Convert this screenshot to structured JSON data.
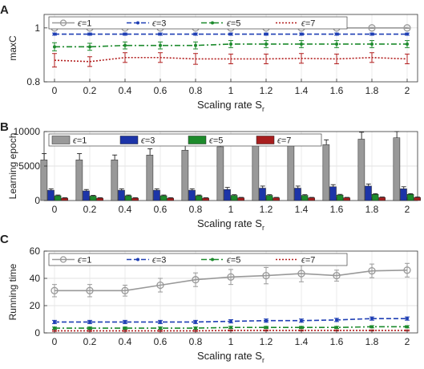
{
  "chart_data": [
    {
      "panel": "A",
      "type": "line",
      "x": [
        "0",
        "0.2",
        "0.4",
        "0.6",
        "0.8",
        "1",
        "1.2",
        "1.4",
        "1.6",
        "1.8",
        "2"
      ],
      "xlabel": "Scaling rate",
      "xlabel_sub": "r",
      "xlabel_var": "S",
      "ylabel": "maxC",
      "ylim": [
        0.8,
        1.05
      ],
      "yticks": [
        "0.8",
        "1"
      ],
      "legend_position": "top",
      "series": [
        {
          "name": "=1",
          "style": "solid-circle",
          "color": "#999999",
          "values": [
            1.0,
            1.0,
            1.0,
            1.0,
            1.0,
            1.0,
            1.0,
            1.0,
            1.0,
            1.0,
            1.0
          ],
          "err": [
            0.002,
            0.002,
            0.002,
            0.002,
            0.002,
            0.002,
            0.002,
            0.002,
            0.002,
            0.002,
            0.002
          ]
        },
        {
          "name": "=3",
          "style": "dashed-dot",
          "color": "#1f3fb4",
          "values": [
            0.977,
            0.977,
            0.977,
            0.977,
            0.977,
            0.977,
            0.977,
            0.977,
            0.977,
            0.977,
            0.977
          ],
          "err": [
            0.004,
            0.004,
            0.004,
            0.004,
            0.004,
            0.004,
            0.004,
            0.004,
            0.004,
            0.004,
            0.004
          ]
        },
        {
          "name": "=5",
          "style": "dashdot-dot",
          "color": "#1c8a2c",
          "values": [
            0.93,
            0.93,
            0.935,
            0.935,
            0.935,
            0.94,
            0.94,
            0.94,
            0.94,
            0.94,
            0.94
          ],
          "err": [
            0.015,
            0.013,
            0.013,
            0.013,
            0.013,
            0.013,
            0.013,
            0.013,
            0.013,
            0.013,
            0.013
          ]
        },
        {
          "name": "=7",
          "style": "dotted-bar",
          "color": "#b21e1e",
          "values": [
            0.88,
            0.875,
            0.89,
            0.89,
            0.885,
            0.885,
            0.885,
            0.887,
            0.885,
            0.89,
            0.885
          ],
          "err": [
            0.025,
            0.018,
            0.018,
            0.018,
            0.02,
            0.018,
            0.018,
            0.018,
            0.018,
            0.018,
            0.018
          ]
        }
      ]
    },
    {
      "panel": "B",
      "type": "bar",
      "categories": [
        "0",
        "0.2",
        "0.4",
        "0.6",
        "0.8",
        "1",
        "1.2",
        "1.4",
        "1.6",
        "1.8",
        "2"
      ],
      "xlabel": "Scaling rate",
      "xlabel_sub": "r",
      "xlabel_var": "S",
      "ylabel": "Learning epoch",
      "ylim": [
        0,
        10000
      ],
      "yticks": [
        "0",
        "5000",
        "10000"
      ],
      "legend_position": "top",
      "series": [
        {
          "name": "=1",
          "color": "#999999",
          "values": [
            5900,
            5900,
            5900,
            6600,
            7300,
            7800,
            8000,
            8300,
            8100,
            8900,
            9100
          ],
          "err": [
            900,
            900,
            700,
            900,
            800,
            1100,
            1100,
            1200,
            700,
            1000,
            900
          ]
        },
        {
          "name": "=3",
          "color": "#1c34a8",
          "values": [
            1500,
            1400,
            1500,
            1500,
            1500,
            1600,
            1800,
            1800,
            2000,
            2100,
            1700
          ],
          "err": [
            200,
            200,
            200,
            200,
            200,
            300,
            300,
            300,
            300,
            300,
            300
          ]
        },
        {
          "name": "=5",
          "color": "#1d8a2b",
          "values": [
            700,
            650,
            700,
            700,
            700,
            750,
            750,
            750,
            800,
            900,
            900
          ],
          "err": [
            100,
            100,
            100,
            100,
            100,
            100,
            100,
            100,
            100,
            100,
            100
          ]
        },
        {
          "name": "=7",
          "color": "#a81e1e",
          "values": [
            350,
            350,
            350,
            350,
            350,
            400,
            400,
            400,
            400,
            450,
            450
          ],
          "err": [
            60,
            60,
            60,
            60,
            60,
            60,
            60,
            60,
            60,
            60,
            60
          ]
        }
      ]
    },
    {
      "panel": "C",
      "type": "line",
      "x": [
        "0",
        "0.2",
        "0.4",
        "0.6",
        "0.8",
        "1",
        "1.2",
        "1.4",
        "1.6",
        "1.8",
        "2"
      ],
      "xlabel": "Scaling rate",
      "xlabel_sub": "r",
      "xlabel_var": "S",
      "ylabel": "Running time",
      "ylim": [
        0,
        60
      ],
      "yticks": [
        "0",
        "20",
        "40",
        "60"
      ],
      "legend_position": "top",
      "series": [
        {
          "name": "=1",
          "style": "solid-circle",
          "color": "#999999",
          "values": [
            31,
            31,
            31,
            35,
            39,
            41,
            42,
            43.5,
            42,
            45.5,
            46
          ],
          "err": [
            4.5,
            4.5,
            4,
            5,
            5,
            5.5,
            6,
            6,
            4,
            5,
            5
          ]
        },
        {
          "name": "=3",
          "style": "dashed-dot",
          "color": "#1f3fb4",
          "values": [
            8,
            8,
            8,
            8,
            8,
            8.5,
            9,
            9,
            9.5,
            10.5,
            10.5
          ],
          "err": [
            1.2,
            1.2,
            1.2,
            1.2,
            1.2,
            1.2,
            1.2,
            1.2,
            1.2,
            1.2,
            1.2
          ]
        },
        {
          "name": "=5",
          "style": "dashdot-dot",
          "color": "#1c8a2c",
          "values": [
            3.5,
            3.5,
            3.5,
            3.5,
            3.5,
            4,
            4,
            4,
            4,
            4.5,
            4.5
          ],
          "err": [
            0.8,
            0.8,
            0.8,
            0.8,
            0.8,
            0.8,
            0.8,
            0.8,
            0.8,
            0.8,
            0.8
          ]
        },
        {
          "name": "=7",
          "style": "dotted-bar",
          "color": "#b21e1e",
          "values": [
            1.5,
            1.5,
            1.5,
            1.5,
            1.5,
            1.8,
            1.8,
            1.8,
            1.8,
            1.8,
            1.8
          ],
          "err": [
            0.4,
            0.4,
            0.4,
            0.4,
            0.4,
            0.4,
            0.4,
            0.4,
            0.4,
            0.4,
            0.4
          ]
        }
      ]
    }
  ],
  "legend_symbol": "ϵ"
}
